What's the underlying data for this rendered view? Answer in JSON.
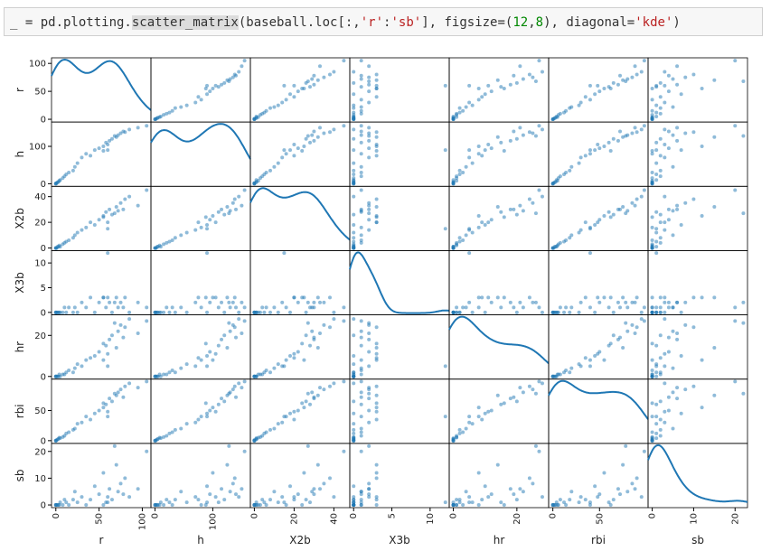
{
  "code": [
    "_ = pd.plotting.",
    "scatter_matrix",
    "(baseball.loc[:,",
    "'r'",
    ":",
    "'sb'",
    "], figsize=(",
    "12",
    ",",
    "8",
    "), diagonal=",
    "'kde'",
    ")"
  ],
  "chart_data": {
    "type": "scatter_matrix",
    "diagonal": "kde",
    "color": "#1f77b4",
    "series": [
      {
        "name": "r",
        "lim": [
          -5,
          110
        ],
        "ticks": [
          0,
          50,
          100
        ],
        "values": [
          0,
          0,
          0,
          1,
          2,
          3,
          4,
          5,
          8,
          10,
          12,
          15,
          20,
          22,
          25,
          30,
          35,
          40,
          45,
          50,
          55,
          58,
          60,
          62,
          65,
          70,
          72,
          75,
          78,
          80,
          85,
          95,
          105,
          60,
          55,
          68
        ]
      },
      {
        "name": "h",
        "lim": [
          -7,
          165
        ],
        "ticks": [
          0,
          100
        ],
        "values": [
          0,
          0,
          1,
          2,
          4,
          5,
          8,
          10,
          15,
          20,
          25,
          30,
          35,
          45,
          55,
          70,
          80,
          75,
          90,
          95,
          100,
          110,
          105,
          115,
          120,
          125,
          130,
          135,
          140,
          138,
          145,
          150,
          155,
          90,
          88,
          128
        ]
      },
      {
        "name": "X2b",
        "lim": [
          -2,
          48
        ],
        "ticks": [
          0,
          20,
          40
        ],
        "values": [
          0,
          0,
          0,
          0,
          1,
          1,
          2,
          1,
          3,
          4,
          5,
          6,
          8,
          10,
          12,
          14,
          16,
          20,
          18,
          22,
          25,
          28,
          20,
          30,
          26,
          32,
          29,
          35,
          30,
          38,
          40,
          33,
          45,
          15,
          24,
          27
        ]
      },
      {
        "name": "X3b",
        "lim": [
          -0.5,
          12.5
        ],
        "ticks": [
          0,
          5,
          10
        ],
        "values": [
          0,
          0,
          0,
          0,
          0,
          0,
          0,
          0,
          0,
          1,
          0,
          1,
          0,
          1,
          0,
          2,
          1,
          3,
          0,
          2,
          3,
          1,
          3,
          2,
          0,
          3,
          1,
          2,
          1,
          3,
          0,
          2,
          1,
          12,
          3,
          2
        ]
      },
      {
        "name": "hr",
        "lim": [
          -1.3,
          30
        ],
        "ticks": [
          0,
          20
        ],
        "values": [
          0,
          0,
          0,
          0,
          0,
          0,
          1,
          0,
          1,
          1,
          2,
          3,
          2,
          4,
          6,
          5,
          8,
          9,
          10,
          12,
          8,
          15,
          11,
          18,
          20,
          14,
          22,
          25,
          19,
          24,
          28,
          21,
          27,
          5,
          16,
          26
        ]
      },
      {
        "name": "rbi",
        "lim": [
          -4.5,
          102
        ],
        "ticks": [
          0,
          50
        ],
        "values": [
          0,
          0,
          0,
          1,
          2,
          3,
          5,
          4,
          6,
          8,
          12,
          14,
          18,
          20,
          28,
          30,
          40,
          35,
          45,
          50,
          55,
          60,
          48,
          70,
          65,
          75,
          80,
          85,
          72,
          90,
          95,
          88,
          98,
          40,
          62,
          78
        ]
      },
      {
        "name": "sb",
        "lim": [
          -1,
          23
        ],
        "ticks": [
          0,
          10,
          20
        ],
        "values": [
          0,
          0,
          0,
          0,
          0,
          0,
          0,
          1,
          0,
          2,
          1,
          0,
          2,
          5,
          1,
          3,
          0,
          2,
          7,
          4,
          12,
          1,
          3,
          6,
          2,
          15,
          5,
          8,
          4,
          10,
          3,
          6,
          20,
          1,
          0,
          22
        ]
      }
    ]
  }
}
